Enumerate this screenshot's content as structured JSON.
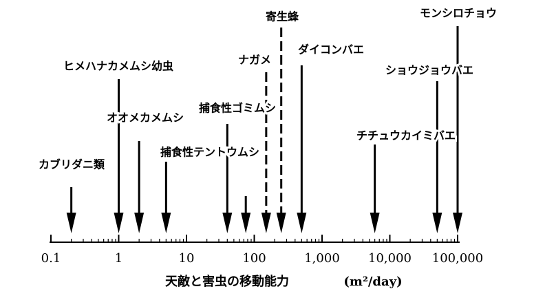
{
  "chart_data": {
    "type": "arrow",
    "log_x": true,
    "xlim": [
      0.1,
      100000
    ],
    "xticks": [
      0.1,
      1,
      10,
      100,
      {
        "value": 1000,
        "label": "1,000"
      },
      {
        "value": 10000,
        "label": "10,000"
      },
      {
        "value": 100000,
        "label": "100,000"
      }
    ],
    "xminor_ticks": [
      0.2,
      0.3,
      0.4,
      0.5,
      0.6,
      0.7,
      0.8,
      0.9,
      2,
      3,
      4,
      5,
      6,
      7,
      8,
      9,
      20,
      30,
      40,
      50,
      60,
      70,
      80,
      90,
      200,
      300,
      400,
      500,
      600,
      700,
      800,
      900,
      2000,
      3000,
      4000,
      5000,
      6000,
      7000,
      8000,
      9000,
      20000,
      30000,
      40000,
      50000,
      60000,
      70000,
      80000,
      90000
    ],
    "xlabel": "天敵と害虫の移動能力",
    "xunit": "(m²/day)",
    "categories": [
      "カブリダニ類",
      "ヒメハナカメムシ幼虫",
      "オオメカメムシ",
      "捕食性テントウムシ",
      "捕食性ゴミムシ",
      null,
      "ナガメ",
      "寄生蜂",
      "ダイコンバエ",
      "チチュウカイミバエ",
      "ショウジョウバエ",
      "モンシロチョウ"
    ],
    "values": [
      0.2,
      1,
      2,
      5,
      40,
      75,
      150,
      250,
      500,
      6000,
      50000,
      100000
    ],
    "line_styles": [
      "solid",
      "solid",
      "solid",
      "solid",
      "solid",
      "solid",
      "dashed",
      "dashed",
      "solid",
      "solid",
      "solid",
      "solid"
    ],
    "color": "#000000"
  }
}
